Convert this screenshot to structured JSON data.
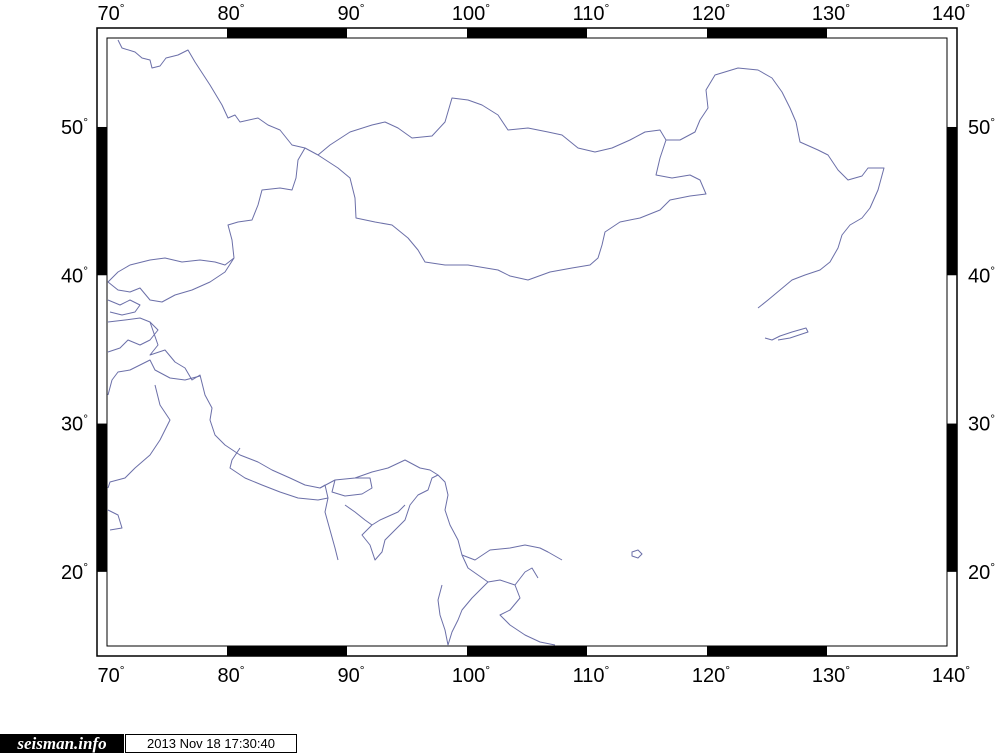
{
  "map": {
    "lon_range": [
      70,
      140
    ],
    "lat_range": [
      15,
      56
    ],
    "lon_ticks": [
      "70",
      "80",
      "90",
      "100",
      "110",
      "120",
      "130",
      "140"
    ],
    "lat_ticks": [
      "20",
      "30",
      "40",
      "50"
    ],
    "degree_symbol": "°",
    "frame_style": "fancy-checkered",
    "colors": {
      "border_line": "#6b6fa8",
      "frame": "#000000",
      "background": "#ffffff"
    }
  },
  "footer": {
    "logo_text": "seisman.info",
    "timestamp": "2013 Nov 18 17:30:40"
  }
}
